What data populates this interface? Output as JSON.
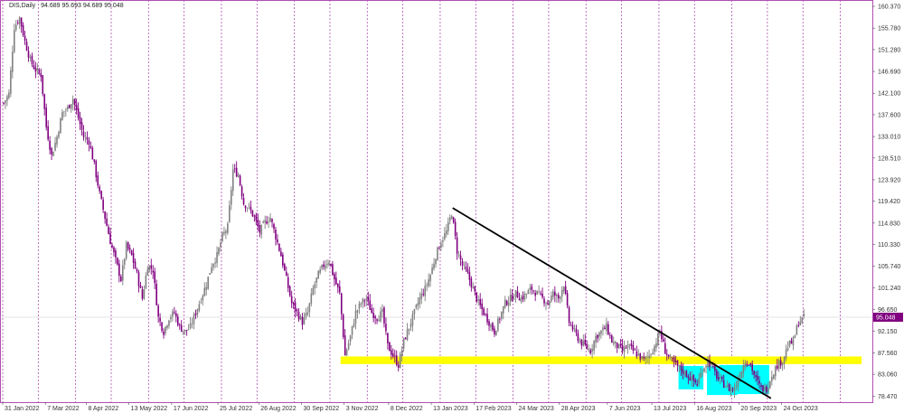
{
  "header": {
    "symbol": "DIS,Daily",
    "ohlc": "94.689 95.693 94.689 95.048"
  },
  "chart_data": {
    "type": "candlestick",
    "title": "",
    "price_axis_labels": [
      "160.370",
      "155.780",
      "151.280",
      "146.690",
      "142.100",
      "137.600",
      "133.010",
      "128.510",
      "123.920",
      "119.420",
      "114.830",
      "110.330",
      "105.740",
      "101.240",
      "96.650",
      "92.150",
      "87.560",
      "83.060",
      "78.470"
    ],
    "price_axis_values": [
      160.37,
      155.78,
      151.28,
      146.69,
      142.1,
      137.6,
      133.01,
      128.51,
      123.92,
      119.42,
      114.83,
      110.33,
      105.74,
      101.24,
      96.65,
      92.15,
      87.56,
      83.06,
      78.47
    ],
    "ylim": [
      77.2,
      161.7
    ],
    "current_price": 95.048,
    "current_price_label": "95.048",
    "date_axis": [
      {
        "label": "31 Jan 2022",
        "bar": 0
      },
      {
        "label": "7 Mar 2022",
        "bar": 24
      },
      {
        "label": "8 Apr 2022",
        "bar": 47
      },
      {
        "label": "13 May 2022",
        "bar": 71
      },
      {
        "label": "17 Jun 2022",
        "bar": 95
      },
      {
        "label": "25 Jul 2022",
        "bar": 121
      },
      {
        "label": "26 Aug 2022",
        "bar": 144
      },
      {
        "label": "30 Sep 2022",
        "bar": 168
      },
      {
        "label": "3 Nov 2022",
        "bar": 192
      },
      {
        "label": "8 Dec 2022",
        "bar": 217
      },
      {
        "label": "13 Jan 2023",
        "bar": 241
      },
      {
        "label": "17 Feb 2023",
        "bar": 265
      },
      {
        "label": "24 Mar 2023",
        "bar": 289
      },
      {
        "label": "28 Apr 2023",
        "bar": 313
      },
      {
        "label": "7 Jun 2023",
        "bar": 340
      },
      {
        "label": "13 Jul 2023",
        "bar": 365
      },
      {
        "label": "16 Aug 2023",
        "bar": 389
      },
      {
        "label": "20 Sep 2023",
        "bar": 414
      },
      {
        "label": "24 Oct 2023",
        "bar": 438
      }
    ],
    "grid_bars": [
      0,
      20,
      41,
      61,
      82,
      102,
      123,
      143,
      164,
      184,
      205,
      225,
      246,
      266,
      287,
      307,
      328,
      348,
      369,
      389,
      410,
      430,
      450,
      471
    ],
    "total_bars": 488,
    "close_path": [
      [
        0,
        140
      ],
      [
        3,
        142
      ],
      [
        6,
        156
      ],
      [
        9,
        158
      ],
      [
        12,
        153
      ],
      [
        15,
        149
      ],
      [
        18,
        147
      ],
      [
        21,
        146
      ],
      [
        24,
        135
      ],
      [
        27,
        129
      ],
      [
        30,
        133
      ],
      [
        33,
        138
      ],
      [
        36,
        139
      ],
      [
        39,
        141
      ],
      [
        42,
        137
      ],
      [
        45,
        133
      ],
      [
        48,
        132
      ],
      [
        51,
        127
      ],
      [
        54,
        121
      ],
      [
        57,
        116
      ],
      [
        60,
        111
      ],
      [
        63,
        107
      ],
      [
        66,
        103
      ],
      [
        69,
        110
      ],
      [
        72,
        108
      ],
      [
        75,
        104
      ],
      [
        78,
        99
      ],
      [
        81,
        106
      ],
      [
        84,
        105
      ],
      [
        87,
        95
      ],
      [
        90,
        92
      ],
      [
        93,
        95
      ],
      [
        96,
        96
      ],
      [
        99,
        93
      ],
      [
        102,
        92
      ],
      [
        105,
        93
      ],
      [
        108,
        96
      ],
      [
        111,
        99
      ],
      [
        114,
        102
      ],
      [
        117,
        106
      ],
      [
        120,
        108
      ],
      [
        123,
        112
      ],
      [
        126,
        114
      ],
      [
        129,
        126
      ],
      [
        132,
        125
      ],
      [
        135,
        119
      ],
      [
        138,
        118
      ],
      [
        141,
        116
      ],
      [
        144,
        113
      ],
      [
        147,
        115
      ],
      [
        150,
        116
      ],
      [
        153,
        112
      ],
      [
        156,
        108
      ],
      [
        159,
        103
      ],
      [
        162,
        98
      ],
      [
        165,
        96
      ],
      [
        168,
        94
      ],
      [
        171,
        96
      ],
      [
        174,
        101
      ],
      [
        177,
        104
      ],
      [
        180,
        106
      ],
      [
        183,
        107
      ],
      [
        186,
        103
      ],
      [
        189,
        100
      ],
      [
        192,
        87
      ],
      [
        195,
        91
      ],
      [
        198,
        96
      ],
      [
        201,
        98
      ],
      [
        204,
        99
      ],
      [
        207,
        96
      ],
      [
        210,
        95
      ],
      [
        213,
        96
      ],
      [
        216,
        89
      ],
      [
        219,
        87
      ],
      [
        222,
        85
      ],
      [
        225,
        90
      ],
      [
        228,
        93
      ],
      [
        231,
        96
      ],
      [
        234,
        99
      ],
      [
        237,
        101
      ],
      [
        240,
        104
      ],
      [
        243,
        108
      ],
      [
        246,
        111
      ],
      [
        249,
        113
      ],
      [
        252,
        117
      ],
      [
        255,
        109
      ],
      [
        258,
        106
      ],
      [
        261,
        104
      ],
      [
        264,
        101
      ],
      [
        267,
        98
      ],
      [
        270,
        96
      ],
      [
        273,
        94
      ],
      [
        276,
        92
      ],
      [
        279,
        95
      ],
      [
        282,
        98
      ],
      [
        285,
        99
      ],
      [
        288,
        100
      ],
      [
        291,
        99
      ],
      [
        294,
        100
      ],
      [
        297,
        101
      ],
      [
        300,
        100
      ],
      [
        303,
        99
      ],
      [
        306,
        98
      ],
      [
        309,
        100
      ],
      [
        312,
        99
      ],
      [
        315,
        102
      ],
      [
        318,
        94
      ],
      [
        321,
        92
      ],
      [
        324,
        90
      ],
      [
        327,
        89
      ],
      [
        330,
        88
      ],
      [
        333,
        91
      ],
      [
        336,
        92
      ],
      [
        339,
        93
      ],
      [
        342,
        90
      ],
      [
        345,
        89
      ],
      [
        348,
        88
      ],
      [
        351,
        89
      ],
      [
        354,
        88
      ],
      [
        357,
        87
      ],
      [
        360,
        86
      ],
      [
        363,
        87
      ],
      [
        366,
        89
      ],
      [
        369,
        92
      ],
      [
        372,
        88
      ],
      [
        375,
        86
      ],
      [
        378,
        85
      ],
      [
        381,
        84
      ],
      [
        384,
        83
      ],
      [
        387,
        82
      ],
      [
        390,
        81
      ],
      [
        393,
        84
      ],
      [
        396,
        86
      ],
      [
        399,
        84
      ],
      [
        402,
        82
      ],
      [
        405,
        81
      ],
      [
        408,
        80
      ],
      [
        411,
        80
      ],
      [
        414,
        83
      ],
      [
        417,
        86
      ],
      [
        420,
        85
      ],
      [
        423,
        82
      ],
      [
        426,
        80
      ],
      [
        429,
        80
      ],
      [
        432,
        83
      ],
      [
        435,
        85
      ],
      [
        438,
        86
      ],
      [
        441,
        89
      ],
      [
        444,
        90
      ],
      [
        447,
        94
      ],
      [
        450,
        95
      ]
    ],
    "trendline": {
      "from": [
        253,
        118
      ],
      "to": [
        432,
        78
      ]
    },
    "support_zone": {
      "from_bar": 190,
      "to_bar": 483,
      "low": 85.2,
      "high": 86.8
    },
    "highlight_boxes": [
      {
        "from_bar": 380,
        "to_bar": 394,
        "low": 79.9,
        "high": 84.8
      },
      {
        "from_bar": 396,
        "to_bar": 413,
        "low": 78.7,
        "high": 84.8
      },
      {
        "from_bar": 403,
        "to_bar": 431,
        "low": 78.9,
        "high": 85.0
      }
    ],
    "colors": {
      "bull": "#808080",
      "bear": "#800080",
      "grid": "#b04fb0",
      "support": "#ffff00",
      "highlight": "#00ffff",
      "trendline": "#000000",
      "price_tag": "#800080"
    }
  }
}
